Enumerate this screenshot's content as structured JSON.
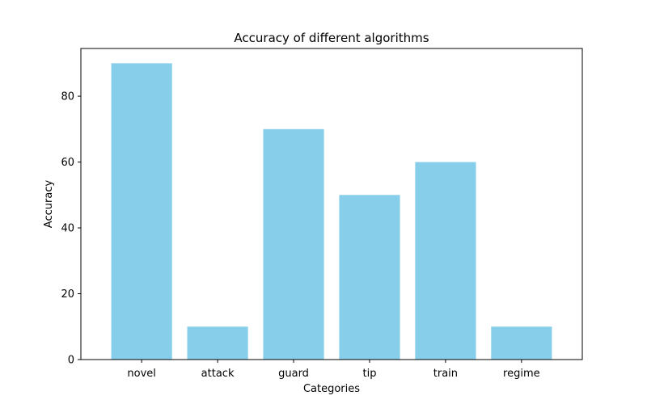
{
  "chart_data": {
    "type": "bar",
    "title": "Accuracy of different algorithms",
    "xlabel": "Categories",
    "ylabel": "Accuracy",
    "categories": [
      "novel",
      "attack",
      "guard",
      "tip",
      "train",
      "regime"
    ],
    "values": [
      90,
      10,
      70,
      50,
      60,
      10
    ],
    "ylim": [
      0,
      94.5
    ],
    "yticks": [
      0,
      20,
      40,
      60,
      80
    ],
    "grid": false,
    "legend": "none",
    "bar_color": "#87CEEB"
  }
}
